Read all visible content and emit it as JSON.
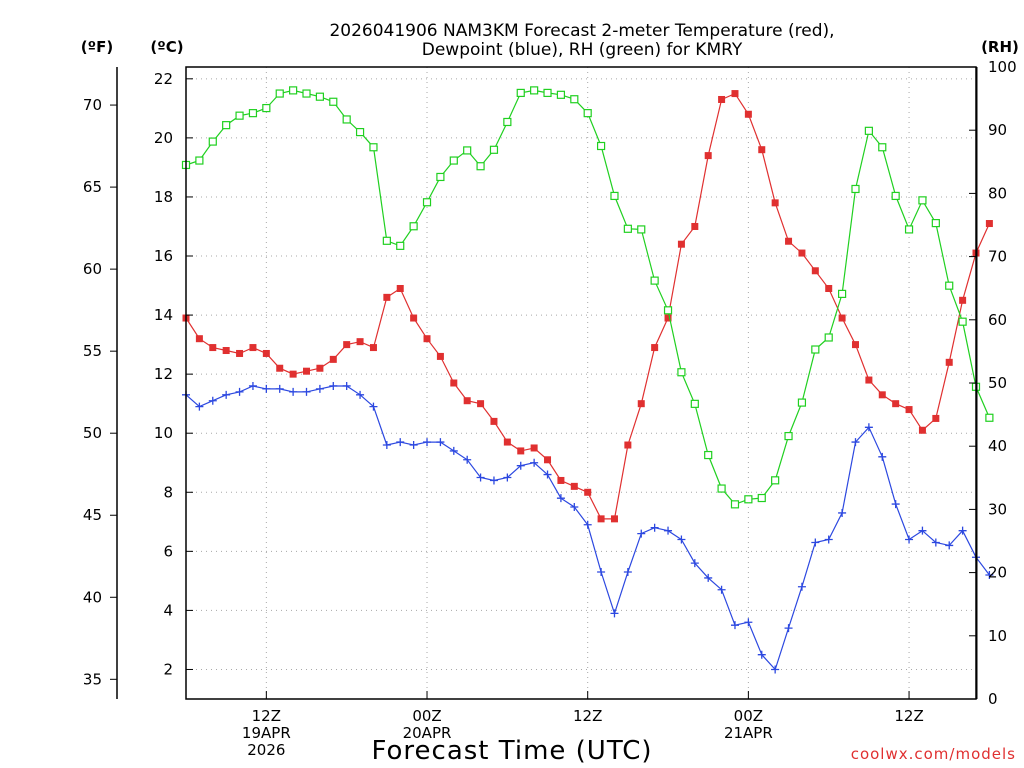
{
  "chart_data": {
    "type": "line",
    "title_line1": "2026041906 NAM3KM Forecast 2-meter Temperature (red),",
    "title_line2": "Dewpoint (blue), RH (green) for KMRY",
    "xlabel": "Forecast Time (UTC)",
    "credit": "coolwx.com/models",
    "units": {
      "f": "(ºF)",
      "c": "(ºC)",
      "rh": "(RH)"
    },
    "x_hours_start": 6,
    "x_hours_end": 65,
    "celsius_axis": {
      "min": 1,
      "max": 22.4,
      "ticks": [
        "2",
        "4",
        "6",
        "8",
        "10",
        "12",
        "14",
        "16",
        "18",
        "20",
        "22"
      ]
    },
    "fahrenheit_axis": {
      "ticks": [
        "35",
        "40",
        "45",
        "50",
        "55",
        "60",
        "65",
        "70"
      ]
    },
    "rh_axis": {
      "min": 0,
      "max": 100,
      "ticks": [
        "0",
        "10",
        "20",
        "30",
        "40",
        "50",
        "60",
        "70",
        "80",
        "90",
        "100"
      ]
    },
    "x_ticks": [
      {
        "hour": 12,
        "lines": [
          "12Z",
          "19APR",
          "2026"
        ]
      },
      {
        "hour": 24,
        "lines": [
          "00Z",
          "20APR"
        ]
      },
      {
        "hour": 36,
        "lines": [
          "12Z"
        ]
      },
      {
        "hour": 48,
        "lines": [
          "00Z",
          "21APR"
        ]
      },
      {
        "hour": 60,
        "lines": [
          "12Z"
        ]
      }
    ],
    "series": [
      {
        "name": "Temperature",
        "color": "#e03030",
        "marker": "filled-square",
        "axis": "celsius",
        "values": [
          13.9,
          13.2,
          12.9,
          12.8,
          12.7,
          12.9,
          12.7,
          12.2,
          12.0,
          12.1,
          12.2,
          12.5,
          13.0,
          13.1,
          12.9,
          14.6,
          14.9,
          13.9,
          13.2,
          12.6,
          11.7,
          11.1,
          11.0,
          10.4,
          9.7,
          9.4,
          9.5,
          9.1,
          8.4,
          8.2,
          8.0,
          7.1,
          7.1,
          9.6,
          11.0,
          12.9,
          13.9,
          16.4,
          17.0,
          19.4,
          21.3,
          21.5,
          20.8,
          19.6,
          17.8,
          16.5,
          16.1,
          15.5,
          14.9,
          13.9,
          13.0,
          11.8,
          11.3,
          11.0,
          10.8,
          10.1,
          10.5,
          12.4,
          14.5,
          16.1,
          17.1
        ]
      },
      {
        "name": "Dewpoint",
        "color": "#2c48e0",
        "marker": "plus",
        "axis": "celsius",
        "values": [
          11.3,
          10.9,
          11.1,
          11.3,
          11.4,
          11.6,
          11.5,
          11.5,
          11.4,
          11.4,
          11.5,
          11.6,
          11.6,
          11.3,
          10.9,
          9.6,
          9.7,
          9.6,
          9.7,
          9.7,
          9.4,
          9.1,
          8.5,
          8.4,
          8.5,
          8.9,
          9.0,
          8.6,
          7.8,
          7.5,
          6.9,
          5.3,
          3.9,
          5.3,
          6.6,
          6.8,
          6.7,
          6.4,
          5.6,
          5.1,
          4.7,
          3.5,
          3.6,
          2.5,
          2.0,
          3.4,
          4.8,
          6.3,
          6.4,
          7.3,
          9.7,
          10.2,
          9.2,
          7.6,
          6.4,
          6.7,
          6.3,
          6.2,
          6.7,
          5.8,
          5.2
        ]
      },
      {
        "name": "RH",
        "color": "#20d020",
        "marker": "open-square",
        "axis": "rh",
        "values": [
          84.5,
          85.2,
          88.2,
          90.8,
          92.3,
          92.7,
          93.5,
          95.8,
          96.3,
          95.8,
          95.3,
          94.5,
          91.7,
          89.7,
          87.3,
          72.5,
          71.7,
          74.8,
          78.6,
          82.6,
          85.2,
          86.8,
          84.3,
          86.9,
          91.3,
          95.9,
          96.3,
          95.9,
          95.6,
          94.9,
          92.7,
          87.5,
          79.6,
          74.4,
          74.3,
          66.2,
          61.5,
          51.7,
          46.7,
          38.6,
          33.3,
          30.8,
          31.6,
          31.8,
          34.6,
          41.6,
          46.9,
          55.3,
          57.2,
          64.1,
          80.7,
          89.9,
          87.3,
          79.6,
          74.3,
          78.9,
          75.3,
          65.4,
          59.7,
          49.4,
          44.5
        ]
      }
    ]
  }
}
